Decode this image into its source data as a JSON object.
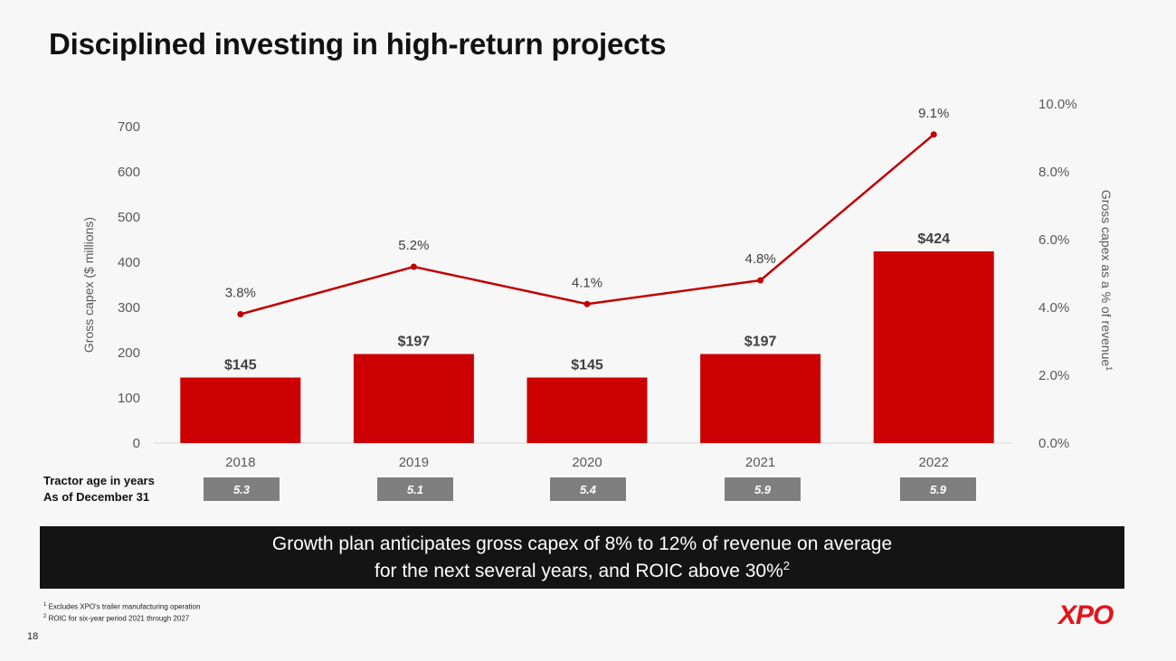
{
  "title": "Disciplined investing in high-return projects",
  "chart_data": {
    "type": "bar+line",
    "categories": [
      "2018",
      "2019",
      "2020",
      "2021",
      "2022"
    ],
    "series": [
      {
        "name": "Gross capex ($ millions)",
        "type": "bar",
        "axis": "left",
        "values": [
          145,
          197,
          145,
          197,
          424
        ],
        "labels": [
          "$145",
          "$197",
          "$145",
          "$197",
          "$424"
        ]
      },
      {
        "name": "Gross capex as a % of revenue",
        "type": "line",
        "axis": "right",
        "values": [
          3.8,
          5.2,
          4.1,
          4.8,
          9.1
        ],
        "labels": [
          "3.8%",
          "5.2%",
          "4.1%",
          "4.8%",
          "9.1%"
        ]
      }
    ],
    "ylabel_left": "Gross capex ($ millions)",
    "ylabel_right": "Gross capex as a % of revenue",
    "ylabel_right_sup": "1",
    "ylim_left": [
      0,
      700
    ],
    "ylim_right": [
      0,
      10
    ],
    "yticks_left": [
      "0",
      "100",
      "200",
      "300",
      "400",
      "500",
      "600",
      "700"
    ],
    "yticks_right": [
      "0.0%",
      "2.0%",
      "4.0%",
      "6.0%",
      "8.0%",
      "10.0%"
    ],
    "grid": false,
    "colors": {
      "bar": "#cc0000",
      "line": "#c00000"
    }
  },
  "tractor_age": {
    "label_line1": "Tractor age in years",
    "label_line2": "As of December 31",
    "values": [
      "5.3",
      "5.1",
      "5.4",
      "5.9",
      "5.9"
    ]
  },
  "banner": {
    "line1": "Growth plan anticipates gross capex of 8% to 12% of revenue on average",
    "line2": "for the next several years, and ROIC above 30%",
    "line2_sup": "2"
  },
  "footnotes": [
    {
      "num": "1",
      "text": "Excludes XPO's trailer manufacturing operation"
    },
    {
      "num": "2",
      "text": "ROIC for six-year period 2021 through 2027"
    }
  ],
  "page_number": "18",
  "logo": "XPO"
}
